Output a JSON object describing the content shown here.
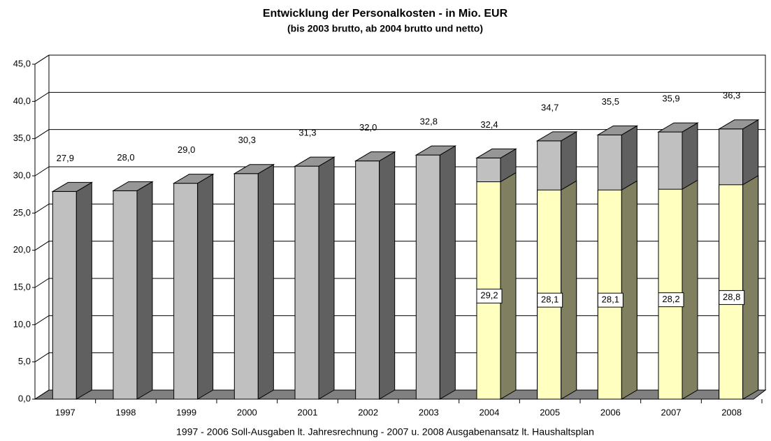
{
  "chart_data": {
    "type": "bar3d",
    "title": "Entwicklung der Personalkosten  -  in Mio. EUR",
    "subtitle": "(bis 2003 brutto, ab 2004 brutto und netto)",
    "x_label": "1997 - 2006 Soll-Ausgaben lt. Jahresrechnung - 2007  u. 2008 Ausgabenansatz lt. Haushaltsplan",
    "categories": [
      "1997",
      "1998",
      "1999",
      "2000",
      "2001",
      "2002",
      "2003",
      "2004",
      "2005",
      "2006",
      "2007",
      "2008"
    ],
    "series": [
      {
        "color": "#c0c0c0",
        "side_color": "#606060",
        "top_color": "#969696",
        "values": [
          27.9,
          28.0,
          29.0,
          30.3,
          31.3,
          32.0,
          32.8,
          32.4,
          34.7,
          35.5,
          35.9,
          36.3
        ],
        "value_labels": [
          "27,9",
          "28,0",
          "29,0",
          "30,3",
          "31,3",
          "32,0",
          "32,8",
          "32,4",
          "34,7",
          "35,5",
          "35,9",
          "36,3"
        ]
      },
      {
        "color": "#ffffc0",
        "side_color": "#808060",
        "values": [
          null,
          null,
          null,
          null,
          null,
          null,
          null,
          29.2,
          28.1,
          28.1,
          28.2,
          28.8
        ],
        "value_labels": [
          null,
          null,
          null,
          null,
          null,
          null,
          null,
          "29,2",
          "28,1",
          "28,1",
          "28,2",
          "28,8"
        ]
      }
    ],
    "ylim": [
      0,
      45
    ],
    "yticks": [
      {
        "value": 0,
        "label": "0,0"
      },
      {
        "value": 5,
        "label": "5,0"
      },
      {
        "value": 10,
        "label": "10,0"
      },
      {
        "value": 15,
        "label": "15,0"
      },
      {
        "value": 20,
        "label": "20,0"
      },
      {
        "value": 25,
        "label": "25,0"
      },
      {
        "value": 30,
        "label": "30,0"
      },
      {
        "value": 35,
        "label": "35,0"
      },
      {
        "value": 40,
        "label": "40,0"
      },
      {
        "value": 45,
        "label": "45,0"
      }
    ],
    "grid": true
  }
}
